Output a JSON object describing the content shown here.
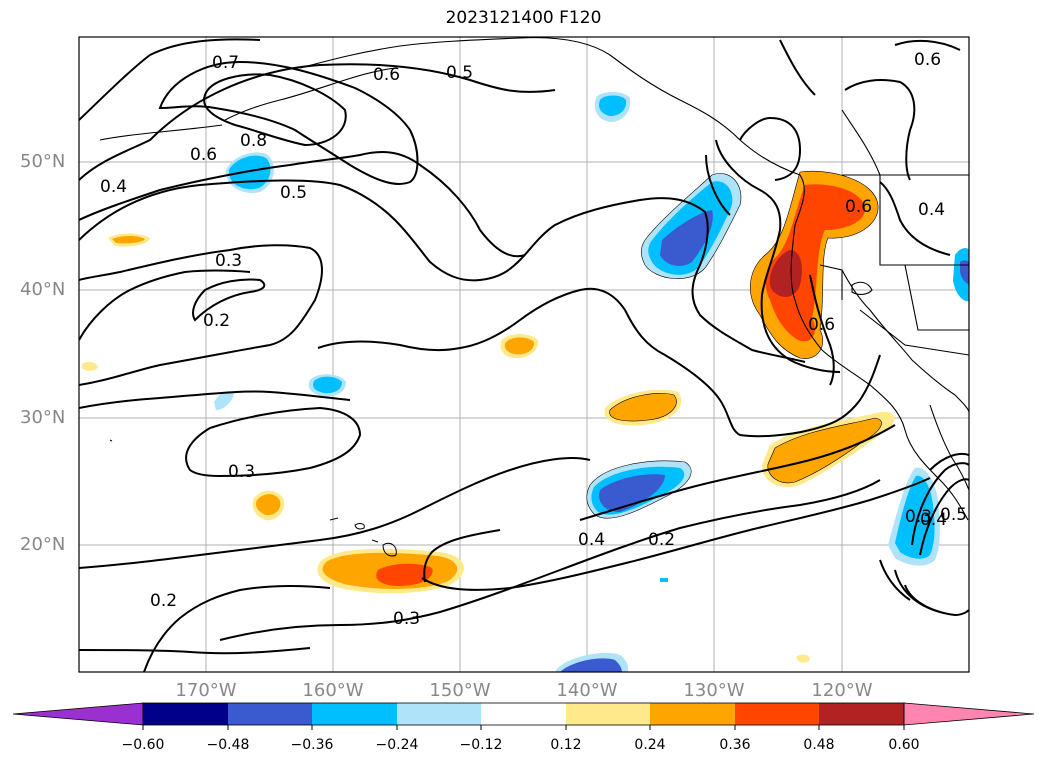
{
  "title": "2023121400 F120",
  "latitude_labels": [
    "50°N",
    "40°N",
    "30°N",
    "20°N"
  ],
  "longitude_labels": [
    "170°W",
    "160°W",
    "150°W",
    "140°W",
    "130°W",
    "120°W"
  ],
  "contour_labels": [
    "0.7",
    "0.6",
    "0.5",
    "0.6",
    "0.8",
    "0.6",
    "0.5",
    "0.4",
    "0.3",
    "0.2",
    "0.3",
    "0.6",
    "0.4",
    "0.4",
    "0.2",
    "0.2",
    "0.3",
    "0.3",
    "0.4",
    "0.5",
    "0.6"
  ],
  "colorbar": {
    "tick_labels": [
      "−0.60",
      "−0.48",
      "−0.36",
      "−0.24",
      "−0.12",
      "0.12",
      "0.24",
      "0.36",
      "0.48",
      "0.60"
    ],
    "colors": [
      "#9b30d0",
      "#00008b",
      "#3a5bd0",
      "#00bfff",
      "#aee3fa",
      "#ffffff",
      "#ffe98a",
      "#ffa500",
      "#ff4500",
      "#b22222",
      "#ff85b0"
    ]
  },
  "shading_colors": {
    "neg_light": "#aee3fa",
    "neg_mid": "#00bfff",
    "neg_strong": "#3a5bd0",
    "neg_max": "#00008b",
    "pos_light": "#ffe98a",
    "pos_mid": "#ffa500",
    "pos_strong": "#ff4500",
    "pos_max": "#b22222"
  }
}
